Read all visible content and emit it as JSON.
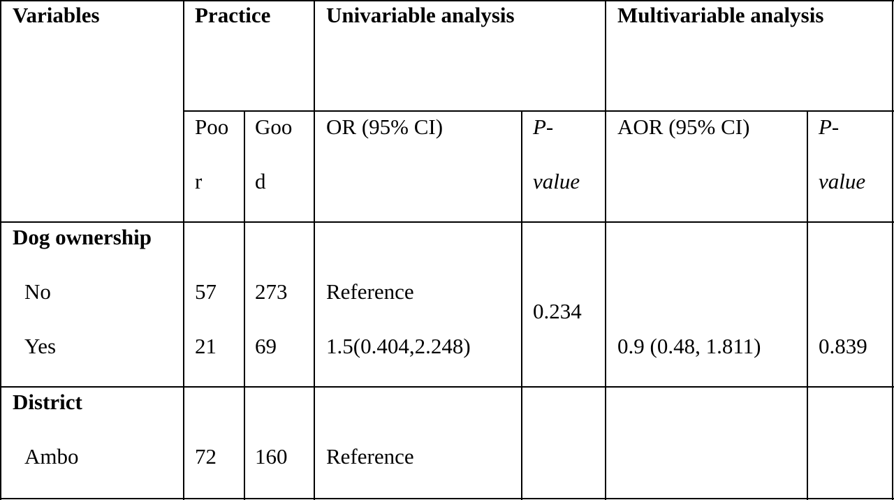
{
  "header": {
    "variables": "Variables",
    "practice": "Practice",
    "univariable": "Univariable analysis",
    "multivariable": "Multivariable analysis",
    "poor_1": "Poo",
    "poor_2": "r",
    "good_1": "Goo",
    "good_2": "d",
    "or_ci": "OR (95% CI)",
    "p_1": "P-",
    "p_2": "value",
    "aor_ci": "AOR (95% CI)",
    "p2_1": "P-",
    "p2_2": "value"
  },
  "sections": [
    {
      "title": "Dog ownership",
      "rows": [
        {
          "label": "No",
          "poor": "57",
          "good": "273",
          "or": "Reference",
          "p": "",
          "aor": "",
          "p2": ""
        },
        {
          "label": "Yes",
          "poor": "21",
          "good": "69",
          "or": "1.5(0.404,2.248)",
          "p": "",
          "aor": "0.9 (0.48, 1.811)",
          "p2": "0.839"
        }
      ],
      "p_merged": "0.234"
    },
    {
      "title": "District",
      "rows": [
        {
          "label": "Ambo",
          "poor": "72",
          "good": "160",
          "or": "Reference",
          "p": "",
          "aor": "",
          "p2": ""
        }
      ]
    }
  ]
}
